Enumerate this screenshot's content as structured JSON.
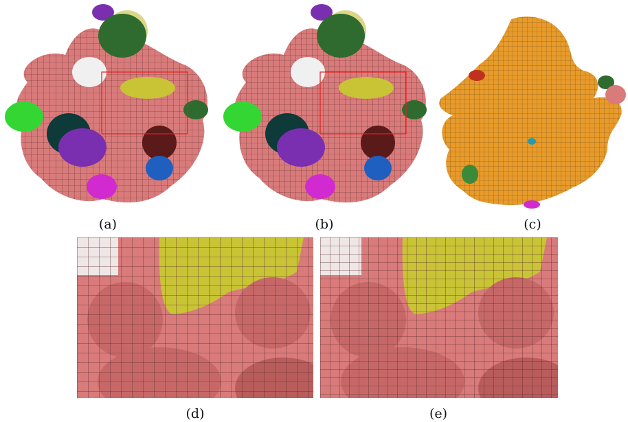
{
  "figure": {
    "captions": {
      "a": "(a)",
      "b": "(b)",
      "c": "(c)",
      "d": "(d)",
      "e": "(e)"
    }
  },
  "colors": {
    "surface_pink": "#d97b7b",
    "mesh_line": "#5a2b2b",
    "highlight_yellow": "#c9c435",
    "pocket_green": "#2f6b2f",
    "pocket_purple": "#7a2fb0",
    "pocket_blue": "#1f5fbf",
    "pocket_magenta": "#d12ad1",
    "pocket_teal": "#2a9aa8",
    "pocket_dark_red": "#6b1e1e",
    "pocket_light_green": "#33d633",
    "cross_section_orange": "#e89b2a",
    "selection_box_red": "#e02020"
  }
}
